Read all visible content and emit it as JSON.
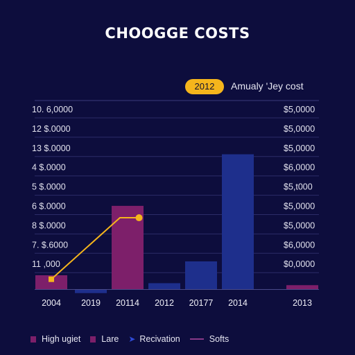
{
  "chart_data": {
    "type": "bar",
    "title": "CHOOGGE COSTS",
    "badge": "2012",
    "subtitle": "Amualy  'Jey cost",
    "categories": [
      "2004",
      "2019",
      "20114",
      "2012",
      "20177",
      "2014",
      "2013"
    ],
    "y_ticks_left": [
      "10. 6,0000",
      "12  $.0000",
      "13  $.0000",
      "4  $.0000",
      "5  $.0000",
      "6  $.0000",
      "8  $.0000",
      "7. $.6000",
      "11  ,000"
    ],
    "y_ticks_right": [
      "$5,0000",
      "$5,0000",
      "$5,0000",
      "$6,0000",
      "$5,t000",
      "$5,0000",
      "$5,0000",
      "$6,0000",
      "$0,0000"
    ],
    "ylim": [
      0,
      8
    ],
    "grid": true,
    "series": [
      {
        "values": [
          0.7,
          -0.2,
          4.2,
          0.3,
          1.4,
          6.8,
          0.2
        ],
        "colors": [
          "#7d1f6a",
          "#1e2f8c",
          "#7d1f6a",
          "#1e2f8c",
          "#1e2f8c",
          "#1e2f8c",
          "#7d1f6a"
        ]
      },
      {
        "type": "line",
        "color": "#f5b51c",
        "points": [
          [
            0,
            0.5
          ],
          [
            1.8,
            3.6
          ],
          [
            2.3,
            3.6
          ]
        ]
      }
    ],
    "legend": [
      {
        "label": "High ugiet",
        "swatch": "box",
        "color": "#7d1f6a"
      },
      {
        "label": "Lare",
        "swatch": "box",
        "color": "#7d1f6a"
      },
      {
        "label": "Recivation",
        "swatch": "arrow",
        "color": "#2f4bd8"
      },
      {
        "label": "Softs",
        "swatch": "line",
        "color": "#8a3a8a"
      }
    ],
    "legend_position": "bottom"
  }
}
